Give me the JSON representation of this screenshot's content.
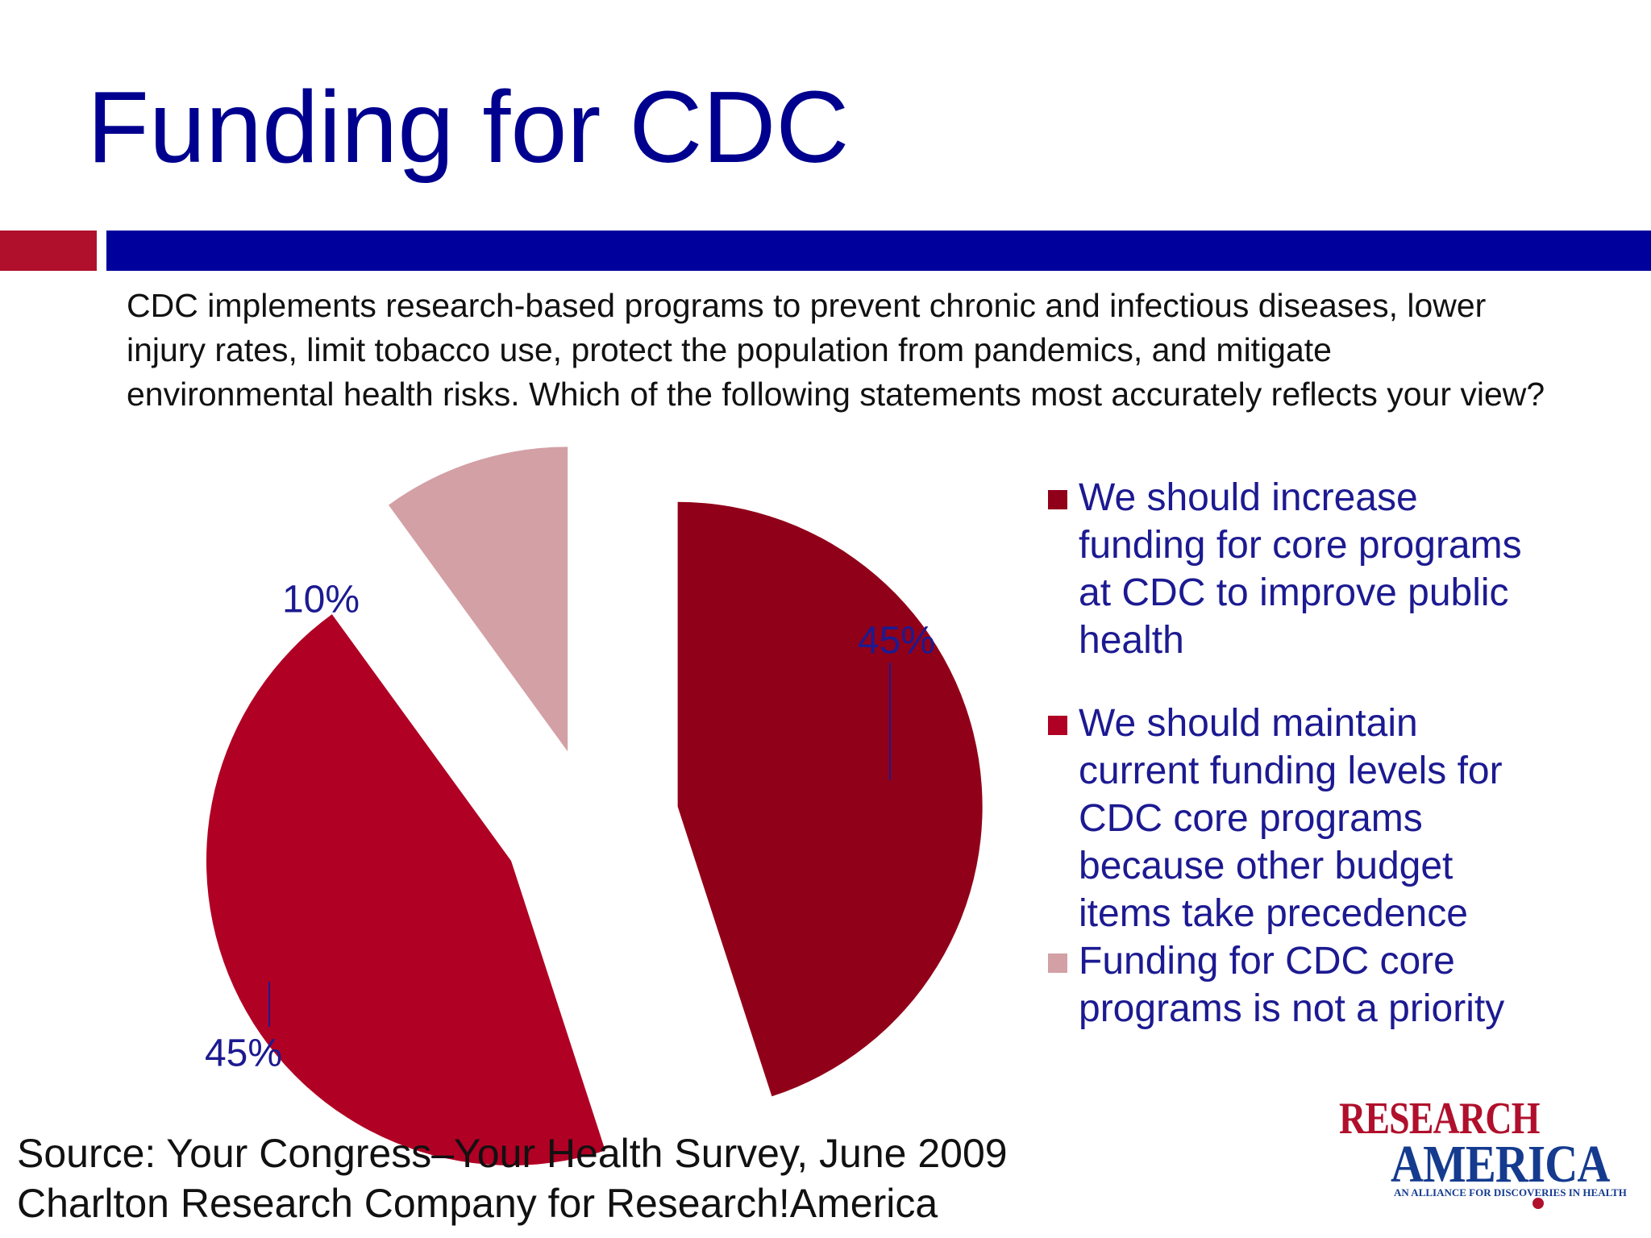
{
  "slide": {
    "title": "Funding for CDC",
    "question": "CDC implements research-based programs to prevent chronic and infectious diseases, lower injury rates, limit tobacco use, protect the population from pandemics, and mitigate environmental health risks. Which of the following statements most accurately reflects your view?",
    "accent_colors": {
      "title": "#00008f",
      "red_bar": "#b0102c",
      "blue_bar": "#00009c"
    }
  },
  "chart_data": {
    "type": "pie",
    "title": "",
    "slices": [
      {
        "label": "We should increase funding for core programs at CDC to improve public health",
        "value": 45,
        "value_label": "45%",
        "color": "#910019"
      },
      {
        "label": "We should maintain current funding levels for CDC core programs because other budget items take precedence",
        "value": 45,
        "value_label": "45%",
        "color": "#b00024"
      },
      {
        "label": "Funding for CDC core programs is not a priority",
        "value": 10,
        "value_label": "10%",
        "color": "#d3a0a5"
      }
    ],
    "start_angle_deg": 0,
    "direction": "clockwise",
    "exploded": true,
    "legend_position": "right"
  },
  "source": {
    "lines": [
      "Source: Your Congress–Your Health Survey, June 2009",
      "Charlton Research Company for Research!America"
    ]
  },
  "logo": {
    "line1": "RESEARCH",
    "line2": "AMERICA",
    "tagline": "AN ALLIANCE FOR DISCOVERIES IN HEALTH"
  }
}
